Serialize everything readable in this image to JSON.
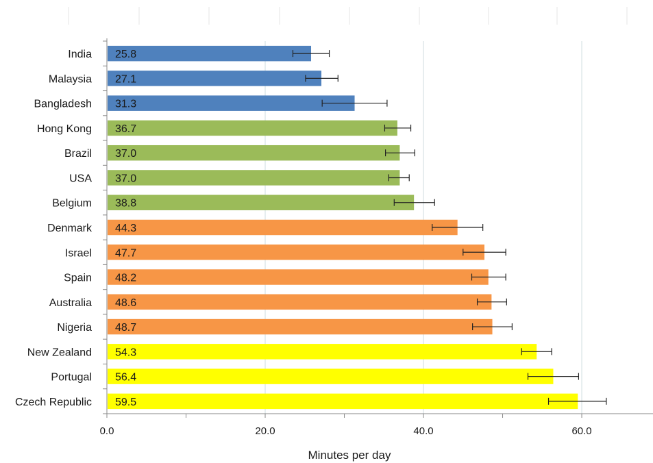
{
  "chart_data": {
    "type": "bar",
    "orientation": "horizontal",
    "categories": [
      "India",
      "Malaysia",
      "Bangladesh",
      "Hong Kong",
      "Brazil",
      "USA",
      "Belgium",
      "Denmark",
      "Israel",
      "Spain",
      "Australia",
      "Nigeria",
      "New Zealand",
      "Portugal",
      "Czech Republic"
    ],
    "values": [
      25.8,
      27.1,
      31.3,
      36.7,
      37.0,
      37.0,
      38.8,
      44.3,
      47.7,
      48.2,
      48.6,
      48.7,
      54.3,
      56.4,
      59.5
    ],
    "value_labels": [
      "25.8",
      "27.1",
      "31.3",
      "36.7",
      "37.0",
      "37.0",
      "38.8",
      "44.3",
      "47.7",
      "48.2",
      "48.6",
      "48.7",
      "54.3",
      "56.4",
      "59.5"
    ],
    "error_low": [
      23.5,
      25.1,
      27.2,
      35.1,
      35.2,
      35.6,
      36.3,
      41.1,
      45.0,
      46.1,
      46.8,
      46.2,
      52.4,
      53.2,
      55.8
    ],
    "error_high": [
      28.1,
      29.2,
      35.4,
      38.4,
      38.9,
      38.2,
      41.4,
      47.5,
      50.4,
      50.4,
      50.5,
      51.2,
      56.2,
      59.6,
      63.1
    ],
    "colors": [
      "#4f81bd",
      "#4f81bd",
      "#4f81bd",
      "#9bbb59",
      "#9bbb59",
      "#9bbb59",
      "#9bbb59",
      "#f79646",
      "#f79646",
      "#f79646",
      "#f79646",
      "#f79646",
      "#ffff00",
      "#ffff00",
      "#ffff00"
    ],
    "xlabel": "Minutes per day",
    "xlim": [
      0,
      69
    ],
    "xticks": [
      0,
      20,
      40,
      60
    ],
    "xtick_labels": [
      "0.0",
      "20.0",
      "40.0",
      "60.0"
    ],
    "grid": true,
    "legend": "none"
  }
}
